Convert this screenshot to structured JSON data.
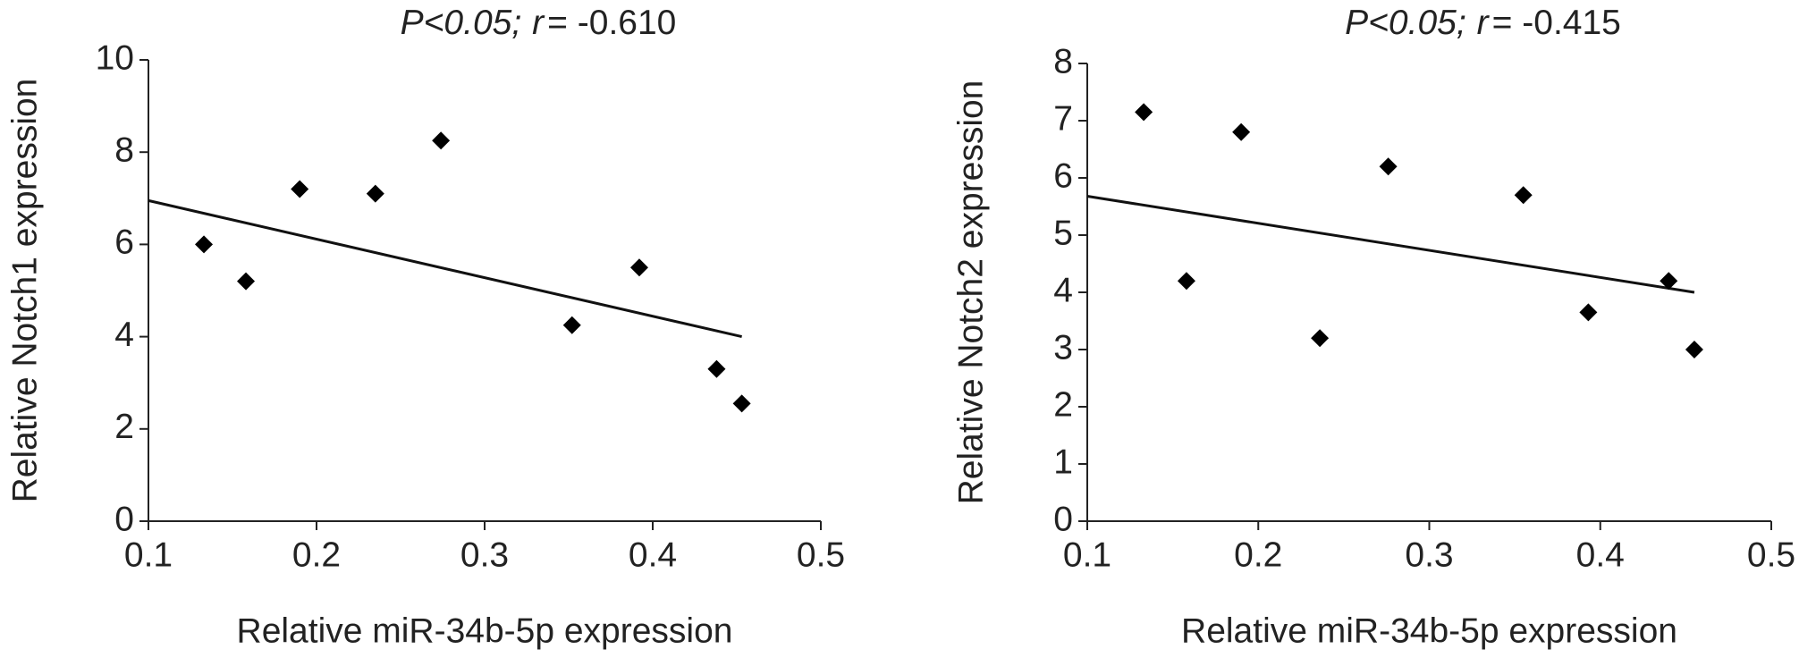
{
  "chart_data": [
    {
      "type": "scatter",
      "title": {
        "p": "P<0.05;",
        "r": "r",
        "value": "= -0.610"
      },
      "x_label": "Relative miR-34b-5p expression",
      "y_label": "Relative Notch1 expression",
      "x": [
        0.133,
        0.158,
        0.19,
        0.235,
        0.274,
        0.352,
        0.392,
        0.438,
        0.453
      ],
      "series": [
        {
          "color": "#000000",
          "values": [
            6.0,
            5.2,
            7.2,
            7.1,
            8.25,
            4.25,
            5.5,
            3.3,
            2.55
          ]
        }
      ],
      "trendline": {
        "x": [
          0.1,
          0.453
        ],
        "y": [
          6.95,
          4.0
        ]
      },
      "xlim": [
        0.1,
        0.5
      ],
      "xticks": [
        0.1,
        0.2,
        0.3,
        0.4,
        0.5
      ],
      "ylim": [
        0,
        10
      ],
      "yticks": [
        0,
        2,
        4,
        6,
        8,
        10
      ]
    },
    {
      "type": "scatter",
      "title": {
        "p": "P<0.05;",
        "r": "r",
        "value": "= -0.415"
      },
      "x_label": "Relative miR-34b-5p expression",
      "y_label": "Relative Notch2 expression",
      "x": [
        0.133,
        0.158,
        0.19,
        0.236,
        0.276,
        0.355,
        0.393,
        0.44,
        0.455
      ],
      "series": [
        {
          "color": "#000000",
          "values": [
            7.15,
            4.2,
            6.8,
            3.2,
            6.2,
            5.7,
            3.65,
            4.2,
            3.0
          ]
        }
      ],
      "trendline": {
        "x": [
          0.1,
          0.455
        ],
        "y": [
          5.68,
          4.0
        ]
      },
      "xlim": [
        0.1,
        0.5
      ],
      "xticks": [
        0.1,
        0.2,
        0.3,
        0.4,
        0.5
      ],
      "ylim": [
        0,
        8
      ],
      "yticks": [
        0,
        1,
        2,
        3,
        4,
        5,
        6,
        7,
        8
      ]
    }
  ]
}
